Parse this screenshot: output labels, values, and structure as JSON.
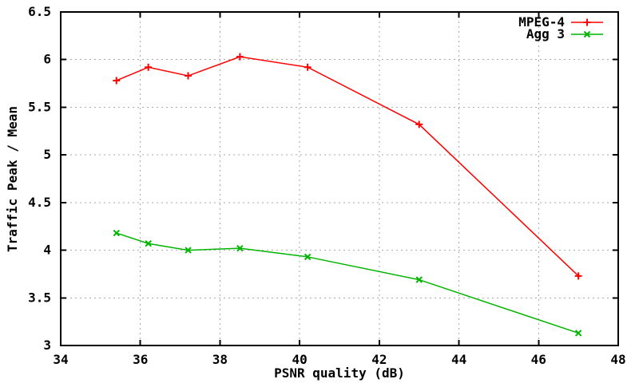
{
  "chart_data": {
    "type": "line",
    "title": "",
    "xlabel": "PSNR quality (dB)",
    "ylabel": "Traffic Peak / Mean",
    "xlim": [
      34,
      48
    ],
    "ylim": [
      3,
      6.5
    ],
    "xticks": [
      34,
      36,
      38,
      40,
      42,
      44,
      46,
      48
    ],
    "yticks": [
      3,
      3.5,
      4,
      4.5,
      5,
      5.5,
      6,
      6.5
    ],
    "grid": true,
    "legend": {
      "position": "top-right-inside",
      "box": false
    },
    "x": [
      35.4,
      36.2,
      37.2,
      38.5,
      40.2,
      43.0,
      47.0
    ],
    "series": [
      {
        "name": "MPEG-4",
        "color": "#ff0000",
        "marker": "plus",
        "values": [
          5.78,
          5.92,
          5.83,
          6.03,
          5.92,
          5.32,
          3.73
        ]
      },
      {
        "name": "Agg 3",
        "color": "#00b400",
        "marker": "cross",
        "values": [
          4.18,
          4.07,
          4.0,
          4.02,
          3.93,
          3.69,
          3.13
        ]
      }
    ]
  },
  "colors": {
    "background": "#ffffff",
    "axis": "#000000",
    "grid": "#aaaaaa",
    "text": "#000000"
  }
}
